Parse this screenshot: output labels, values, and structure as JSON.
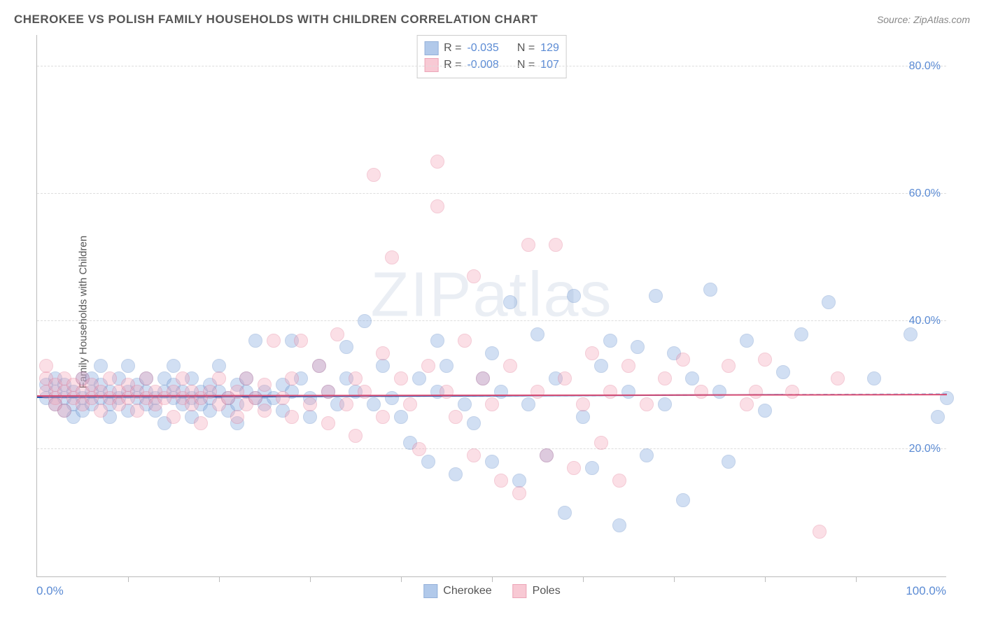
{
  "chart": {
    "title": "CHEROKEE VS POLISH FAMILY HOUSEHOLDS WITH CHILDREN CORRELATION CHART",
    "source_label": "Source: ZipAtlas.com",
    "ylabel": "Family Households with Children",
    "watermark": "ZIPatlas",
    "type": "scatter",
    "background_color": "#ffffff",
    "grid_color": "#dddddd",
    "axis_color": "#bbbbbb",
    "tick_label_color": "#5b8bd4",
    "text_color": "#555555",
    "title_fontsize": 17,
    "label_fontsize": 15,
    "tick_fontsize": 16,
    "xlim": [
      0,
      100
    ],
    "ylim": [
      0,
      85
    ],
    "x_min_label": "0.0%",
    "x_max_label": "100.0%",
    "y_gridlines": [
      20,
      40,
      60,
      80
    ],
    "y_tick_labels": [
      "20.0%",
      "40.0%",
      "60.0%",
      "80.0%"
    ],
    "x_ticks": [
      10,
      20,
      30,
      40,
      50,
      60,
      70,
      80,
      90
    ],
    "point_radius": 10,
    "point_opacity": 0.35,
    "series": [
      {
        "name": "Cherokee",
        "fill_color": "#7ea6dd",
        "stroke_color": "#4f7ec1",
        "trend": {
          "y_start": 28.0,
          "y_end": 27.5,
          "color": "#2b5bb0",
          "dashed_extension": true
        },
        "stats": {
          "R": "-0.035",
          "N": "129"
        },
        "points": [
          [
            1,
            28
          ],
          [
            1,
            30
          ],
          [
            2,
            27
          ],
          [
            2,
            29
          ],
          [
            2,
            31
          ],
          [
            3,
            26
          ],
          [
            3,
            28
          ],
          [
            3,
            30
          ],
          [
            4,
            27
          ],
          [
            4,
            29
          ],
          [
            4,
            25
          ],
          [
            5,
            28
          ],
          [
            5,
            31
          ],
          [
            5,
            26
          ],
          [
            6,
            29
          ],
          [
            6,
            27
          ],
          [
            6,
            31
          ],
          [
            7,
            28
          ],
          [
            7,
            30
          ],
          [
            7,
            33
          ],
          [
            8,
            27
          ],
          [
            8,
            29
          ],
          [
            8,
            25
          ],
          [
            9,
            28
          ],
          [
            9,
            31
          ],
          [
            10,
            29
          ],
          [
            10,
            26
          ],
          [
            10,
            33
          ],
          [
            11,
            28
          ],
          [
            11,
            30
          ],
          [
            12,
            27
          ],
          [
            12,
            29
          ],
          [
            12,
            31
          ],
          [
            13,
            28
          ],
          [
            13,
            26
          ],
          [
            14,
            29
          ],
          [
            14,
            31
          ],
          [
            14,
            24
          ],
          [
            15,
            28
          ],
          [
            15,
            30
          ],
          [
            15,
            33
          ],
          [
            16,
            27
          ],
          [
            16,
            29
          ],
          [
            17,
            28
          ],
          [
            17,
            25
          ],
          [
            17,
            31
          ],
          [
            18,
            29
          ],
          [
            18,
            27
          ],
          [
            19,
            28
          ],
          [
            19,
            30
          ],
          [
            19,
            26
          ],
          [
            20,
            29
          ],
          [
            20,
            33
          ],
          [
            21,
            28
          ],
          [
            21,
            26
          ],
          [
            22,
            27
          ],
          [
            22,
            30
          ],
          [
            22,
            24
          ],
          [
            23,
            29
          ],
          [
            23,
            31
          ],
          [
            24,
            28
          ],
          [
            24,
            37
          ],
          [
            25,
            27
          ],
          [
            25,
            29
          ],
          [
            26,
            28
          ],
          [
            27,
            30
          ],
          [
            27,
            26
          ],
          [
            28,
            37
          ],
          [
            28,
            29
          ],
          [
            29,
            31
          ],
          [
            30,
            28
          ],
          [
            30,
            25
          ],
          [
            31,
            33
          ],
          [
            32,
            29
          ],
          [
            33,
            27
          ],
          [
            34,
            31
          ],
          [
            34,
            36
          ],
          [
            35,
            29
          ],
          [
            36,
            40
          ],
          [
            37,
            27
          ],
          [
            38,
            33
          ],
          [
            39,
            28
          ],
          [
            40,
            25
          ],
          [
            41,
            21
          ],
          [
            42,
            31
          ],
          [
            43,
            18
          ],
          [
            44,
            29
          ],
          [
            44,
            37
          ],
          [
            45,
            33
          ],
          [
            46,
            16
          ],
          [
            47,
            27
          ],
          [
            48,
            24
          ],
          [
            49,
            31
          ],
          [
            50,
            18
          ],
          [
            50,
            35
          ],
          [
            51,
            29
          ],
          [
            52,
            43
          ],
          [
            53,
            15
          ],
          [
            54,
            27
          ],
          [
            55,
            38
          ],
          [
            56,
            19
          ],
          [
            57,
            31
          ],
          [
            58,
            10
          ],
          [
            59,
            44
          ],
          [
            60,
            25
          ],
          [
            61,
            17
          ],
          [
            62,
            33
          ],
          [
            63,
            37
          ],
          [
            64,
            8
          ],
          [
            65,
            29
          ],
          [
            66,
            36
          ],
          [
            67,
            19
          ],
          [
            68,
            44
          ],
          [
            69,
            27
          ],
          [
            70,
            35
          ],
          [
            71,
            12
          ],
          [
            72,
            31
          ],
          [
            74,
            45
          ],
          [
            75,
            29
          ],
          [
            76,
            18
          ],
          [
            78,
            37
          ],
          [
            80,
            26
          ],
          [
            82,
            32
          ],
          [
            84,
            38
          ],
          [
            87,
            43
          ],
          [
            92,
            31
          ],
          [
            96,
            38
          ],
          [
            99,
            25
          ],
          [
            100,
            28
          ]
        ]
      },
      {
        "name": "Poles",
        "fill_color": "#f4a6b8",
        "stroke_color": "#e06a8a",
        "trend": {
          "y_start": 28.2,
          "y_end": 28.0,
          "color": "#d94f75",
          "dashed_extension": false
        },
        "stats": {
          "R": "-0.008",
          "N": "107"
        },
        "points": [
          [
            1,
            29
          ],
          [
            1,
            31
          ],
          [
            1,
            33
          ],
          [
            2,
            28
          ],
          [
            2,
            30
          ],
          [
            2,
            27
          ],
          [
            3,
            29
          ],
          [
            3,
            31
          ],
          [
            3,
            26
          ],
          [
            4,
            28
          ],
          [
            4,
            30
          ],
          [
            5,
            29
          ],
          [
            5,
            27
          ],
          [
            5,
            31
          ],
          [
            6,
            28
          ],
          [
            6,
            30
          ],
          [
            7,
            29
          ],
          [
            7,
            26
          ],
          [
            8,
            28
          ],
          [
            8,
            31
          ],
          [
            9,
            29
          ],
          [
            9,
            27
          ],
          [
            10,
            28
          ],
          [
            10,
            30
          ],
          [
            11,
            29
          ],
          [
            11,
            26
          ],
          [
            12,
            28
          ],
          [
            12,
            31
          ],
          [
            13,
            29
          ],
          [
            13,
            27
          ],
          [
            14,
            28
          ],
          [
            15,
            29
          ],
          [
            15,
            25
          ],
          [
            16,
            28
          ],
          [
            16,
            31
          ],
          [
            17,
            29
          ],
          [
            17,
            27
          ],
          [
            18,
            28
          ],
          [
            18,
            24
          ],
          [
            19,
            29
          ],
          [
            20,
            27
          ],
          [
            20,
            31
          ],
          [
            21,
            28
          ],
          [
            22,
            29
          ],
          [
            22,
            25
          ],
          [
            23,
            27
          ],
          [
            23,
            31
          ],
          [
            24,
            28
          ],
          [
            25,
            26
          ],
          [
            25,
            30
          ],
          [
            26,
            37
          ],
          [
            27,
            28
          ],
          [
            28,
            25
          ],
          [
            28,
            31
          ],
          [
            29,
            37
          ],
          [
            30,
            27
          ],
          [
            31,
            33
          ],
          [
            32,
            29
          ],
          [
            32,
            24
          ],
          [
            33,
            38
          ],
          [
            34,
            27
          ],
          [
            35,
            31
          ],
          [
            35,
            22
          ],
          [
            36,
            29
          ],
          [
            37,
            63
          ],
          [
            38,
            35
          ],
          [
            38,
            25
          ],
          [
            39,
            50
          ],
          [
            40,
            31
          ],
          [
            41,
            27
          ],
          [
            42,
            20
          ],
          [
            43,
            33
          ],
          [
            44,
            58
          ],
          [
            44,
            65
          ],
          [
            45,
            29
          ],
          [
            46,
            25
          ],
          [
            47,
            37
          ],
          [
            48,
            19
          ],
          [
            48,
            47
          ],
          [
            49,
            31
          ],
          [
            50,
            27
          ],
          [
            51,
            15
          ],
          [
            52,
            33
          ],
          [
            53,
            13
          ],
          [
            54,
            52
          ],
          [
            55,
            29
          ],
          [
            56,
            19
          ],
          [
            57,
            52
          ],
          [
            58,
            31
          ],
          [
            59,
            17
          ],
          [
            60,
            27
          ],
          [
            61,
            35
          ],
          [
            62,
            21
          ],
          [
            63,
            29
          ],
          [
            64,
            15
          ],
          [
            65,
            33
          ],
          [
            67,
            27
          ],
          [
            69,
            31
          ],
          [
            71,
            34
          ],
          [
            73,
            29
          ],
          [
            76,
            33
          ],
          [
            78,
            27
          ],
          [
            80,
            34
          ],
          [
            83,
            29
          ],
          [
            86,
            7
          ],
          [
            88,
            31
          ],
          [
            79,
            29
          ]
        ]
      }
    ],
    "stats_box": {
      "R_label": "R =",
      "N_label": "N ="
    },
    "bottom_legend": {
      "items": [
        "Cherokee",
        "Poles"
      ]
    }
  }
}
